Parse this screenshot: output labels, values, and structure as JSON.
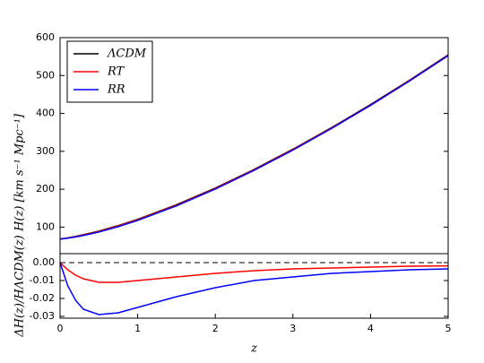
{
  "chart_data": [
    {
      "type": "line",
      "ylabel": "H(z)    [km s⁻¹ Mpc⁻¹]",
      "x": [
        0,
        0.1,
        0.2,
        0.3,
        0.5,
        0.75,
        1,
        1.5,
        2,
        2.5,
        3,
        3.5,
        4,
        4.5,
        5
      ],
      "series": [
        {
          "name": "ΛCDM",
          "color": "#000000",
          "values": [
            68.5,
            71.8,
            75.6,
            79.9,
            89.6,
            104.1,
            120.6,
            159.0,
            203.2,
            252.3,
            305.6,
            362.7,
            423.4,
            487.3,
            554.4
          ]
        },
        {
          "name": "RT",
          "color": "#ff0000",
          "values": [
            68.5,
            71.5,
            75.1,
            79.2,
            88.6,
            103.0,
            119.4,
            157.7,
            202.0,
            251.2,
            304.5,
            361.6,
            422.3,
            486.3,
            553.4
          ]
        },
        {
          "name": "RR",
          "color": "#0000ff",
          "values": [
            68.5,
            70.9,
            74.0,
            77.8,
            87.0,
            101.2,
            117.6,
            156.0,
            200.4,
            249.8,
            303.2,
            360.5,
            421.3,
            485.4,
            552.5
          ]
        }
      ],
      "xlim": [
        0,
        5
      ],
      "ylim": [
        30,
        600
      ],
      "yticks": [
        100,
        200,
        300,
        400,
        500,
        600
      ],
      "legend": "upper left"
    },
    {
      "type": "line",
      "ylabel": "ΔH(z)/HΛCDM(z)",
      "xlabel": "z",
      "x": [
        0,
        0.1,
        0.2,
        0.3,
        0.5,
        0.75,
        1,
        1.5,
        2,
        2.5,
        3,
        3.5,
        4,
        4.5,
        5
      ],
      "series": [
        {
          "name": "RT",
          "color": "#ff0000",
          "values": [
            0,
            -0.004,
            -0.007,
            -0.009,
            -0.011,
            -0.011,
            -0.01,
            -0.008,
            -0.006,
            -0.0045,
            -0.0035,
            -0.003,
            -0.0025,
            -0.002,
            -0.0018
          ]
        },
        {
          "name": "RR",
          "color": "#0000ff",
          "values": [
            0,
            -0.013,
            -0.021,
            -0.026,
            -0.029,
            -0.028,
            -0.025,
            -0.019,
            -0.014,
            -0.01,
            -0.008,
            -0.006,
            -0.005,
            -0.004,
            -0.0035
          ]
        }
      ],
      "hline": 0,
      "xlim": [
        0,
        5
      ],
      "ylim": [
        -0.031,
        0.005
      ],
      "xticks": [
        0,
        1,
        2,
        3,
        4,
        5
      ],
      "yticks": [
        {
          "value": 0,
          "label": "0.00"
        },
        {
          "value": -0.01,
          "label": "-0.01"
        },
        {
          "value": -0.02,
          "label": "-0.02"
        },
        {
          "value": -0.03,
          "label": "-0.03"
        }
      ]
    }
  ]
}
